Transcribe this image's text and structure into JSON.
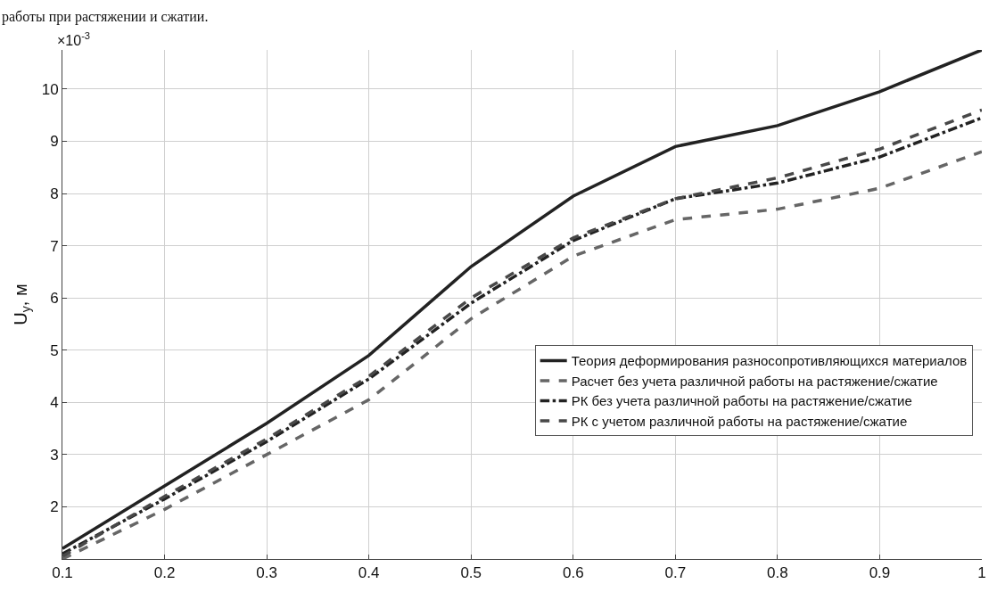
{
  "chart_data": {
    "type": "line",
    "x": [
      0.1,
      0.2,
      0.3,
      0.4,
      0.5,
      0.6,
      0.7,
      0.8,
      0.9,
      1.0
    ],
    "series": [
      {
        "name": "Теория деформирования разносопротивляющихся материалов",
        "color": "#222222",
        "line_style": "solid",
        "values": [
          1.2,
          2.4,
          3.6,
          4.9,
          6.6,
          7.95,
          8.9,
          9.3,
          9.95,
          10.75
        ]
      },
      {
        "name": "Расчет без учета различной работы на растяжение/сжатие",
        "color": "#666666",
        "line_style": "dashed",
        "values": [
          1.0,
          1.95,
          3.0,
          4.05,
          5.6,
          6.8,
          7.5,
          7.7,
          8.1,
          8.8
        ]
      },
      {
        "name": "РК без учета различной работы на растяжение/сжатие",
        "color": "#222222",
        "line_style": "dashdot",
        "values": [
          1.1,
          2.15,
          3.25,
          4.45,
          5.9,
          7.1,
          7.9,
          8.2,
          8.7,
          9.45
        ]
      },
      {
        "name": "РК с учетом различной работы на растяжение/сжатие",
        "color": "#484848",
        "line_style": "dashed",
        "values": [
          1.05,
          2.2,
          3.3,
          4.5,
          6.0,
          7.15,
          7.9,
          8.3,
          8.85,
          9.6
        ]
      }
    ],
    "ylabel": "U$_{y}$, м",
    "annotations": [
      "×10$^{-3}$",
      "работы при растяжении и сжатии."
    ],
    "xlim": [
      0.1,
      1.0
    ],
    "xticks": [
      0.1,
      0.2,
      0.3,
      0.4,
      0.5,
      0.6,
      0.7,
      0.8,
      0.9,
      1
    ],
    "ylim": [
      1.0,
      10.75
    ],
    "yticks": [
      2,
      3,
      4,
      5,
      6,
      7,
      8,
      9,
      10
    ],
    "grid": true,
    "legend": "right"
  }
}
